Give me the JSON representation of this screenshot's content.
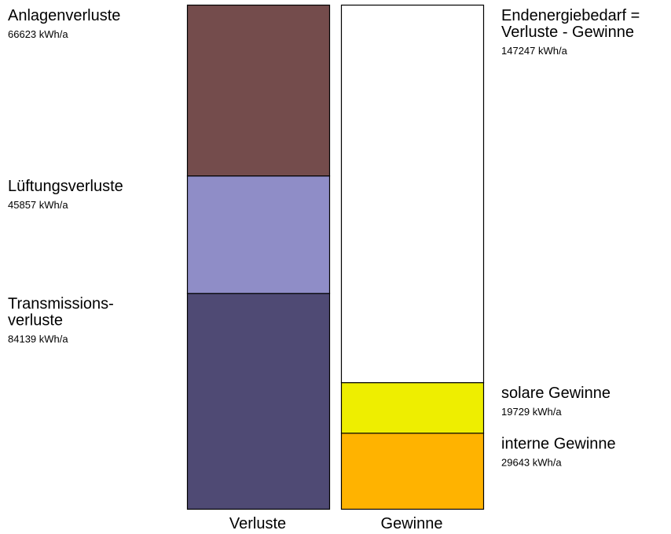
{
  "chart_data": {
    "type": "bar",
    "subtype": "stacked-balance",
    "categories": [
      "Verluste",
      "Gewinne"
    ],
    "unit": "kWh/a",
    "ylim": [
      0,
      196619
    ],
    "grid": false,
    "series": [
      {
        "category": "Verluste",
        "segments": [
          {
            "label_lines": [
              "Transmissions-",
              "verluste"
            ],
            "value": 84139,
            "value_text": "84139 kWh/a",
            "color": "#4f4a74"
          },
          {
            "label_lines": [
              "Lüftungsverluste"
            ],
            "value": 45857,
            "value_text": "45857 kWh/a",
            "color": "#8f8dc7"
          },
          {
            "label_lines": [
              "Anlagenverluste"
            ],
            "value": 66623,
            "value_text": "66623 kWh/a",
            "color": "#744c4c"
          }
        ]
      },
      {
        "category": "Gewinne",
        "segments": [
          {
            "label_lines": [
              "interne Gewinne"
            ],
            "value": 29643,
            "value_text": "29643 kWh/a",
            "color": "#ffb300"
          },
          {
            "label_lines": [
              "solare Gewinne"
            ],
            "value": 19729,
            "value_text": "19729 kWh/a",
            "color": "#eeee00"
          },
          {
            "label_lines": [
              "Endenergiebedarf =",
              "Verluste - Gewinne"
            ],
            "value": 147247,
            "value_text": "147247 kWh/a",
            "color": "#ffffff"
          }
        ]
      }
    ]
  }
}
